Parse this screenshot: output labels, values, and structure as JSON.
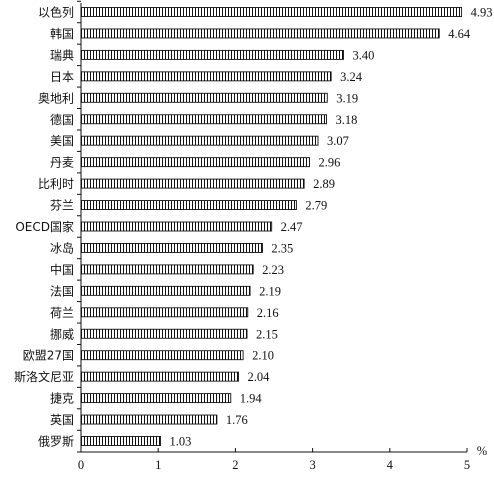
{
  "chart_data": {
    "type": "bar",
    "orientation": "horizontal",
    "title": "",
    "xlabel": "",
    "ylabel": "",
    "unit": "%",
    "xlim": [
      0,
      5
    ],
    "xticks": [
      0,
      1,
      2,
      3,
      4,
      5
    ],
    "grid": false,
    "bar_pattern": "vertical-hatch",
    "bar_color": "#111111",
    "categories": [
      "以色列",
      "韩国",
      "瑞典",
      "日本",
      "奥地利",
      "德国",
      "美国",
      "丹麦",
      "比利时",
      "芬兰",
      "OECD国家",
      "冰岛",
      "中国",
      "法国",
      "荷兰",
      "挪威",
      "欧盟27国",
      "斯洛文尼亚",
      "捷克",
      "英国",
      "俄罗斯"
    ],
    "values": [
      4.93,
      4.64,
      3.4,
      3.24,
      3.19,
      3.18,
      3.07,
      2.96,
      2.89,
      2.79,
      2.47,
      2.35,
      2.23,
      2.19,
      2.16,
      2.15,
      2.1,
      2.04,
      1.94,
      1.76,
      1.03
    ],
    "value_labels": [
      "4.93",
      "4.64",
      "3.40",
      "3.24",
      "3.19",
      "3.18",
      "3.07",
      "2.96",
      "2.89",
      "2.79",
      "2.47",
      "2.35",
      "2.23",
      "2.19",
      "2.16",
      "2.15",
      "2.10",
      "2.04",
      "1.94",
      "1.76",
      "1.03"
    ]
  }
}
